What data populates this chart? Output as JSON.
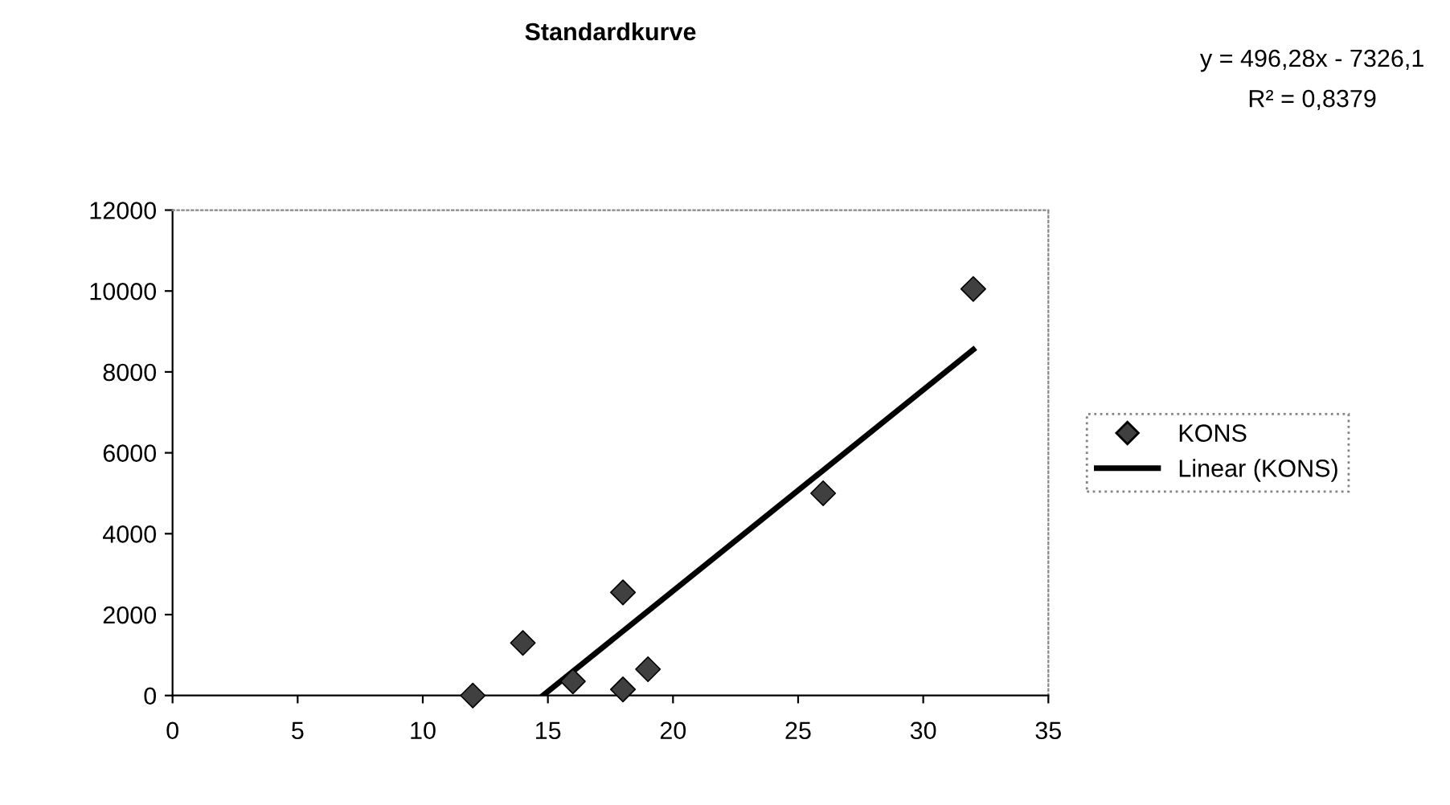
{
  "chart_data": {
    "type": "scatter",
    "title": "Standardkurve",
    "series": [
      {
        "name": "KONS",
        "color": "#404040",
        "marker": "diamond",
        "x": [
          12,
          14,
          16,
          18,
          18,
          19,
          26,
          32
        ],
        "values": [
          0,
          1300,
          350,
          2550,
          150,
          650,
          5000,
          10050
        ]
      },
      {
        "name": "Linear (KONS)",
        "type": "line",
        "color": "#000000",
        "marker": "none",
        "line_style": "solid",
        "x": [
          14.8,
          32
        ],
        "values": [
          0,
          8550
        ]
      }
    ],
    "xlim": [
      0,
      35
    ],
    "ylim": [
      0,
      12000
    ],
    "xticks": [
      0,
      5,
      10,
      15,
      20,
      25,
      30,
      35
    ],
    "yticks": [
      0,
      2000,
      4000,
      6000,
      8000,
      10000,
      12000
    ],
    "grid": false,
    "legend": "right",
    "annotations": [
      "y = 496,28x - 7326,1",
      "R² = 0,8379"
    ]
  }
}
